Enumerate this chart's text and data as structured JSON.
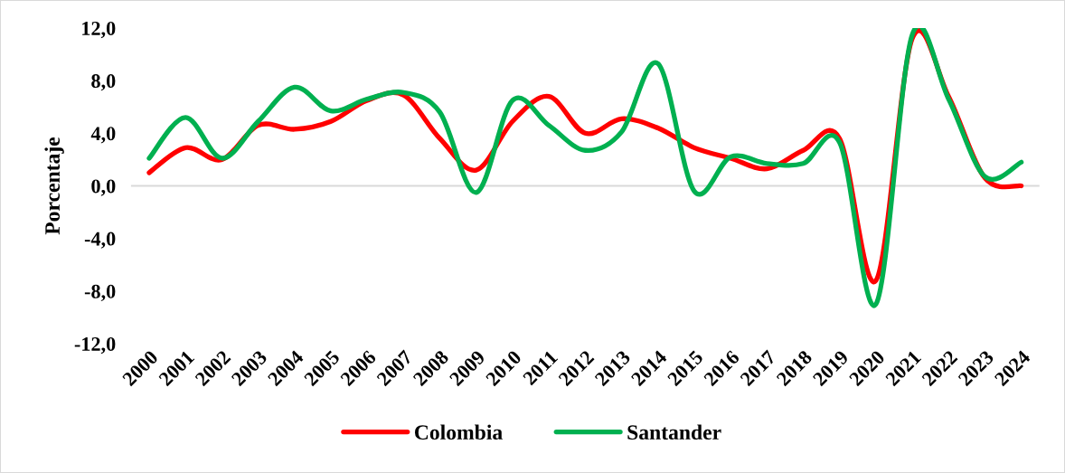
{
  "chart_data": {
    "type": "line",
    "ylabel": "Porcentaje",
    "categories": [
      "2000",
      "2001",
      "2002",
      "2003",
      "2004",
      "2005",
      "2006",
      "2007",
      "2008",
      "2009",
      "2010",
      "2011",
      "2012",
      "2013",
      "2014",
      "2015",
      "2016",
      "2017",
      "2018",
      "2019",
      "2020",
      "2021",
      "2022",
      "2023",
      "2024"
    ],
    "series": [
      {
        "name": "Colombia",
        "color": "#ff0000",
        "values": [
          1.0,
          2.9,
          2.0,
          4.6,
          4.3,
          4.9,
          6.5,
          6.9,
          3.6,
          1.2,
          4.9,
          6.8,
          4.0,
          5.1,
          4.4,
          2.9,
          2.1,
          1.3,
          2.7,
          3.6,
          -7.2,
          11.2,
          6.8,
          0.6,
          0.0
        ]
      },
      {
        "name": "Santander",
        "color": "#00b050",
        "values": [
          2.1,
          5.2,
          2.1,
          4.9,
          7.5,
          5.7,
          6.6,
          7.1,
          5.6,
          -0.5,
          6.5,
          4.6,
          2.7,
          4.1,
          9.3,
          -0.4,
          2.2,
          1.7,
          1.7,
          3.3,
          -9.0,
          11.5,
          6.6,
          0.7,
          1.8
        ]
      }
    ],
    "ylim": [
      -12,
      12
    ],
    "yticks": [
      {
        "value": -12,
        "label": "-12,0"
      },
      {
        "value": -8,
        "label": "-8,0"
      },
      {
        "value": -4,
        "label": "-4,0"
      },
      {
        "value": 0,
        "label": "0,0"
      },
      {
        "value": 4,
        "label": "4,0"
      },
      {
        "value": 8,
        "label": "8,0"
      },
      {
        "value": 12,
        "label": "12,0"
      }
    ],
    "grid": false,
    "legend": "bottom",
    "line_style": "solid",
    "ref_lines": [
      {
        "axis": "y",
        "value": 0,
        "color": "#d9d9d9"
      }
    ]
  }
}
